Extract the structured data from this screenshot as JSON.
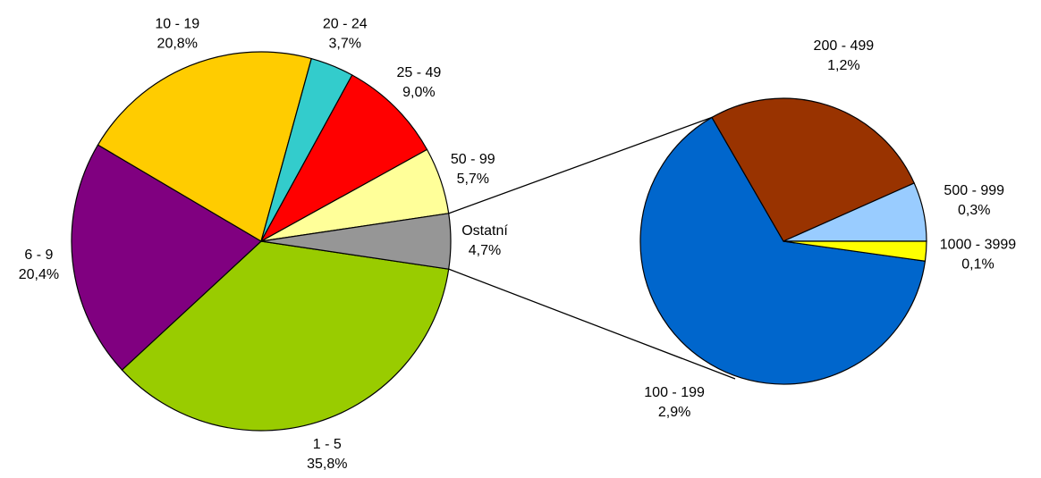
{
  "chart_data": [
    {
      "type": "pie",
      "categories": [
        "1 - 5",
        "6 - 9",
        "10 - 19",
        "20 - 24",
        "25 - 49",
        "50 - 99",
        "Ostatní"
      ],
      "values": [
        35.8,
        20.4,
        20.8,
        3.7,
        9.0,
        5.7,
        4.7
      ],
      "value_labels": [
        "35,8%",
        "20,4%",
        "20,8%",
        "3,7%",
        "9,0%",
        "5,7%",
        "4,7%"
      ],
      "colors": [
        "#99cc00",
        "#800080",
        "#ffcc00",
        "#33cccc",
        "#ff0000",
        "#ffff99",
        "#969696"
      ]
    },
    {
      "type": "pie",
      "categories": [
        "100 - 199",
        "200 - 499",
        "500 - 999",
        "1000 - 3999"
      ],
      "values": [
        2.9,
        1.2,
        0.3,
        0.1
      ],
      "value_labels": [
        "2,9%",
        "1,2%",
        "0,3%",
        "0,1%"
      ],
      "colors": [
        "#0066cc",
        "#993300",
        "#99ccff",
        "#ffff00"
      ]
    }
  ]
}
